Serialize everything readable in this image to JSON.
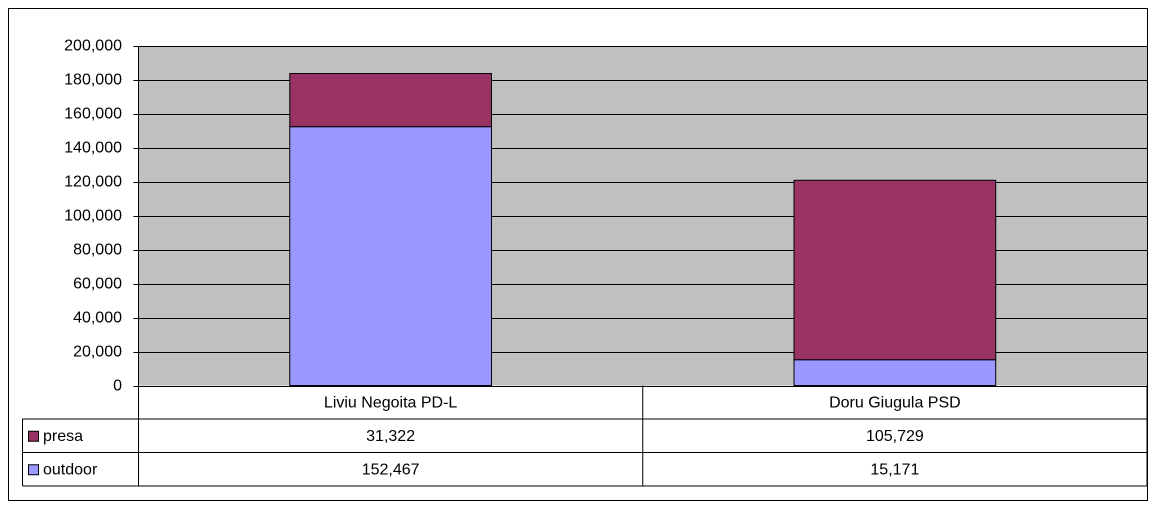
{
  "chart_data": {
    "type": "stacked_bar",
    "categories": [
      "Liviu Negoita PD-L",
      "Doru Giugula PSD"
    ],
    "series": [
      {
        "name": "presa",
        "color": "#993366",
        "values": [
          31322,
          105729
        ],
        "value_labels": [
          "31,322",
          "105,729"
        ]
      },
      {
        "name": "outdoor",
        "color": "#9999ff",
        "values": [
          152467,
          15171
        ],
        "value_labels": [
          "152,467",
          "15,171"
        ]
      }
    ],
    "ylim": [
      0,
      200000
    ],
    "yticks": [
      0,
      {
        "value": 20000,
        "label": "20,000"
      },
      {
        "value": 40000,
        "label": "40,000"
      },
      {
        "value": 60000,
        "label": "60,000"
      },
      {
        "value": 80000,
        "label": "80,000"
      },
      {
        "value": 100000,
        "label": "100,000"
      },
      {
        "value": 120000,
        "label": "120,000"
      },
      {
        "value": 140000,
        "label": "140,000"
      },
      {
        "value": 160000,
        "label": "160,000"
      },
      {
        "value": 180000,
        "label": "180,000"
      },
      {
        "value": 200000,
        "label": "200,000"
      }
    ],
    "grid": true,
    "plot_background": "#c0c0c0",
    "data_table": true
  }
}
